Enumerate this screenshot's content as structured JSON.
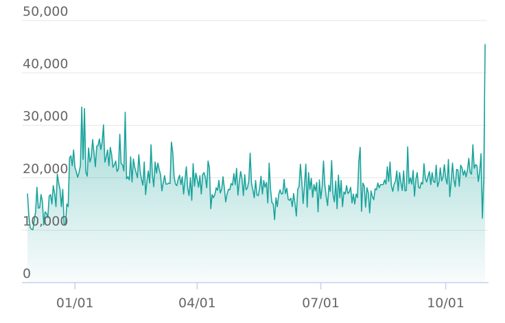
{
  "chart_data": {
    "type": "area",
    "x_start": "2021-11-27",
    "y_ticks": [
      0,
      10000,
      20000,
      30000,
      40000,
      50000
    ],
    "y_tick_labels": [
      "0",
      "10,000",
      "20,000",
      "30,000",
      "40,000",
      "50,000"
    ],
    "x_tick_labels": [
      {
        "date": "2022-01-01",
        "label": "01/01"
      },
      {
        "date": "2022-04-01",
        "label": "04/01"
      },
      {
        "date": "2022-07-01",
        "label": "07/01"
      },
      {
        "date": "2022-10-01",
        "label": "10/01"
      }
    ],
    "ylim": [
      0,
      50000
    ],
    "grid": true,
    "colors": {
      "line": "#1aa39b",
      "fill_top": "#1aa39b",
      "grid": "#e6e6e6",
      "axis": "#c8cdf0"
    },
    "values": [
      17000,
      13000,
      10500,
      10200,
      10100,
      12000,
      13500,
      18200,
      14200,
      14300,
      16800,
      15500,
      11000,
      13500,
      13200,
      12400,
      16500,
      16800,
      15000,
      18500,
      17000,
      14500,
      20700,
      19000,
      17800,
      14500,
      17800,
      11200,
      11000,
      15000,
      14500,
      23800,
      24200,
      22300,
      25300,
      22000,
      21100,
      20100,
      21000,
      22300,
      33500,
      23500,
      33200,
      21100,
      20300,
      25700,
      23000,
      24000,
      27300,
      24800,
      22100,
      26000,
      26200,
      27400,
      25400,
      26800,
      30100,
      23000,
      24000,
      25300,
      22300,
      25800,
      24400,
      22000,
      22500,
      23200,
      21200,
      21700,
      28300,
      22700,
      22500,
      21300,
      32500,
      19800,
      20200,
      19600,
      24000,
      19200,
      23600,
      22000,
      21000,
      20000,
      24400,
      21200,
      19700,
      18600,
      23000,
      16800,
      19400,
      21300,
      19000,
      26300,
      20600,
      18300,
      23000,
      20900,
      22800,
      21600,
      20600,
      17500,
      19100,
      20400,
      18800,
      18800,
      19000,
      18900,
      26800,
      24800,
      20200,
      18800,
      18500,
      19700,
      20500,
      18700,
      20200,
      16900,
      19600,
      22100,
      18000,
      16600,
      20000,
      15700,
      22700,
      18400,
      20900,
      19700,
      18200,
      20400,
      16900,
      20600,
      21000,
      20100,
      18100,
      23200,
      21900,
      14100,
      16800,
      16200,
      16800,
      18100,
      17600,
      19500,
      17100,
      17800,
      20200,
      18000,
      15400,
      16900,
      17800,
      17700,
      18900,
      18600,
      20800,
      18700,
      21800,
      16700,
      19300,
      21200,
      19800,
      16600,
      20600,
      17700,
      18100,
      19400,
      24700,
      18900,
      17700,
      16200,
      19500,
      16700,
      16600,
      18100,
      20300,
      16900,
      19500,
      18200,
      19100,
      15200,
      22800,
      17800,
      15300,
      15000,
      12000,
      16200,
      14500,
      16800,
      17700,
      16900,
      17000,
      19700,
      17000,
      18000,
      15900,
      15700,
      16100,
      14500,
      17000,
      15100,
      12700,
      17800,
      18300,
      22600,
      19400,
      15100,
      18600,
      22600,
      14400,
      21000,
      17800,
      19900,
      16300,
      18700,
      17500,
      19100,
      13500,
      19600,
      16000,
      18300,
      23200,
      18600,
      16400,
      14700,
      18600,
      17400,
      23300,
      16800,
      15400,
      19400,
      14100,
      20500,
      16200,
      19500,
      14500,
      17300,
      16900,
      18500,
      17000,
      17300,
      18200,
      15200,
      16900,
      15000,
      16900,
      16200,
      23100,
      25800,
      13600,
      19000,
      18400,
      14400,
      18100,
      17100,
      13300,
      17500,
      16400,
      15800,
      17900,
      17700,
      19000,
      18100,
      18700,
      18700,
      18700,
      19600,
      18800,
      22100,
      19300,
      23000,
      18500,
      17400,
      18800,
      19300,
      21300,
      17500,
      21000,
      19100,
      17600,
      21300,
      17500,
      17600,
      25900,
      18900,
      20000,
      18800,
      21400,
      16500,
      19700,
      21000,
      18200,
      18000,
      19100,
      18800,
      22700,
      19900,
      19200,
      20300,
      21200,
      18700,
      21000,
      19300,
      19100,
      22400,
      18300,
      19200,
      21900,
      19400,
      20200,
      22500,
      19900,
      18800,
      23500,
      16400,
      19300,
      22800,
      19700,
      18300,
      21600,
      21500,
      18400,
      22400,
      21900,
      20500,
      21400,
      20200,
      21500,
      23700,
      21000,
      20700,
      26300,
      21800,
      22500,
      22300,
      19300,
      21100,
      24600,
      12300,
      19900,
      45500
    ]
  }
}
